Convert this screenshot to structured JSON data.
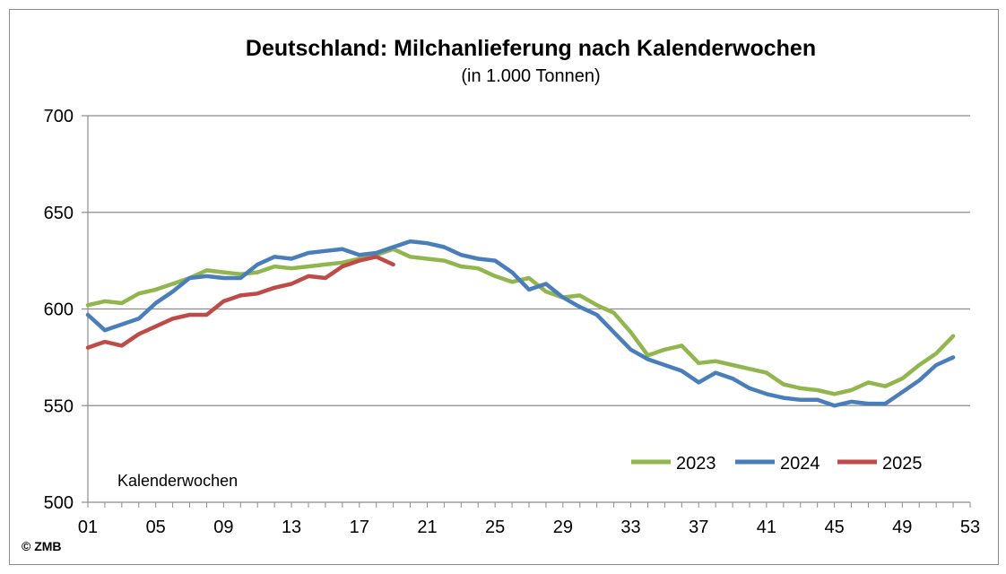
{
  "chart_data": {
    "type": "line",
    "title": "Deutschland: Milchanlieferung nach Kalenderwochen",
    "subtitle": "(in 1.000 Tonnen)",
    "xlabel": "Kalenderwochen",
    "ylabel": "",
    "ylim": [
      500,
      700
    ],
    "xlim": [
      1,
      53
    ],
    "yticks": [
      500,
      550,
      600,
      650,
      700
    ],
    "xticks": [
      "01",
      "05",
      "09",
      "13",
      "17",
      "21",
      "25",
      "29",
      "33",
      "37",
      "41",
      "45",
      "49",
      "53"
    ],
    "xtick_values": [
      1,
      5,
      9,
      13,
      17,
      21,
      25,
      29,
      33,
      37,
      41,
      45,
      49,
      53
    ],
    "grid": true,
    "legend_position": "bottom-right",
    "series": [
      {
        "name": "2023",
        "color": "#92b64e",
        "x": [
          1,
          2,
          3,
          4,
          5,
          6,
          7,
          8,
          9,
          10,
          11,
          12,
          13,
          14,
          15,
          16,
          17,
          18,
          19,
          20,
          21,
          22,
          23,
          24,
          25,
          26,
          27,
          28,
          29,
          30,
          31,
          32,
          33,
          34,
          35,
          36,
          37,
          38,
          39,
          40,
          41,
          42,
          43,
          44,
          45,
          46,
          47,
          48,
          49,
          50,
          51,
          52
        ],
        "values": [
          602,
          604,
          603,
          608,
          610,
          613,
          616,
          620,
          619,
          618,
          619,
          622,
          621,
          622,
          623,
          624,
          626,
          628,
          631,
          627,
          626,
          625,
          622,
          621,
          617,
          614,
          616,
          609,
          606,
          607,
          602,
          598,
          588,
          576,
          579,
          581,
          572,
          573,
          571,
          569,
          567,
          561,
          559,
          558,
          556,
          558,
          562,
          560,
          564,
          571,
          577,
          586
        ]
      },
      {
        "name": "2024",
        "color": "#4a7ebb",
        "x": [
          1,
          2,
          3,
          4,
          5,
          6,
          7,
          8,
          9,
          10,
          11,
          12,
          13,
          14,
          15,
          16,
          17,
          18,
          19,
          20,
          21,
          22,
          23,
          24,
          25,
          26,
          27,
          28,
          29,
          30,
          31,
          32,
          33,
          34,
          35,
          36,
          37,
          38,
          39,
          40,
          41,
          42,
          43,
          44,
          45,
          46,
          47,
          48,
          49,
          50,
          51,
          52
        ],
        "values": [
          597,
          589,
          592,
          595,
          603,
          609,
          616,
          617,
          616,
          616,
          623,
          627,
          626,
          629,
          630,
          631,
          628,
          629,
          632,
          635,
          634,
          632,
          628,
          626,
          625,
          619,
          610,
          613,
          606,
          601,
          597,
          588,
          579,
          574,
          571,
          568,
          562,
          567,
          564,
          559,
          556,
          554,
          553,
          553,
          550,
          552,
          551,
          551,
          557,
          563,
          571,
          575
        ]
      },
      {
        "name": "2025",
        "color": "#be4b48",
        "x": [
          1,
          2,
          3,
          4,
          5,
          6,
          7,
          8,
          9,
          10,
          11,
          12,
          13,
          14,
          15,
          16,
          17,
          18,
          19
        ],
        "values": [
          580,
          583,
          581,
          587,
          591,
          595,
          597,
          597,
          604,
          607,
          608,
          611,
          613,
          617,
          616,
          622,
          625,
          627,
          623
        ]
      }
    ]
  },
  "footer": {
    "copyright": "© ZMB"
  }
}
